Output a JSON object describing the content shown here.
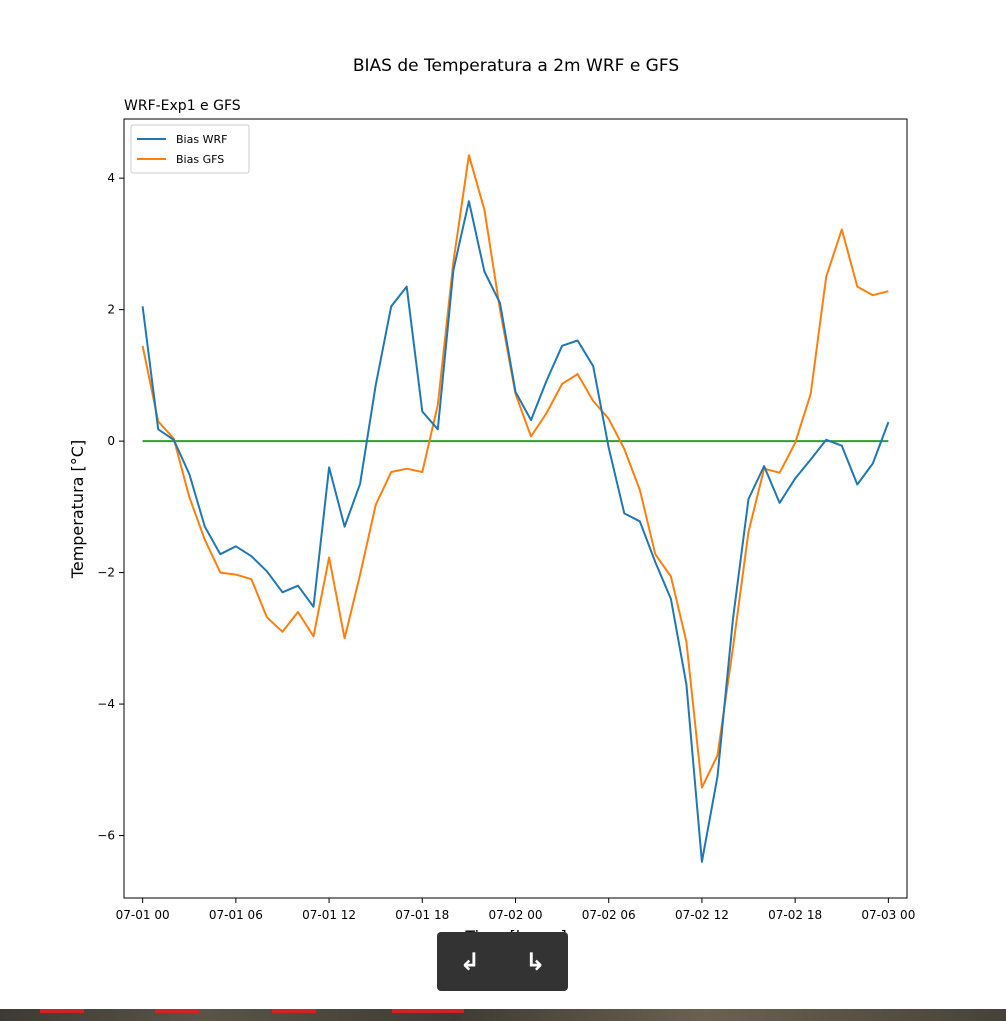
{
  "chart_data": {
    "type": "line",
    "title": "BIAS de Temperatura a 2m WRF e GFS",
    "subtitle": "WRF-Exp1 e GFS",
    "xlabel": "Time [horas]",
    "ylabel": "Temperatura [°C]",
    "x_range_hours": [
      -1.2,
      49.2
    ],
    "ylim": [
      -6.95,
      4.9
    ],
    "x_ticks": [
      {
        "label": "07-01 00",
        "hour": 0
      },
      {
        "label": "07-01 06",
        "hour": 6
      },
      {
        "label": "07-01 12",
        "hour": 12
      },
      {
        "label": "07-01 18",
        "hour": 18
      },
      {
        "label": "07-02 00",
        "hour": 24
      },
      {
        "label": "07-02 06",
        "hour": 30
      },
      {
        "label": "07-02 12",
        "hour": 36
      },
      {
        "label": "07-02 18",
        "hour": 42
      },
      {
        "label": "07-03 00",
        "hour": 48
      }
    ],
    "y_ticks": [
      4,
      2,
      0,
      -2,
      -4,
      -6
    ],
    "legend_position": "top-left",
    "grid": false,
    "series": [
      {
        "name": "Bias WRF",
        "color": "#1f77b4",
        "values": [
          2.05,
          0.18,
          0.02,
          -0.5,
          -1.3,
          -1.72,
          -1.6,
          -1.75,
          -1.98,
          -2.3,
          -2.2,
          -2.52,
          -0.4,
          -1.3,
          -0.65,
          0.85,
          2.05,
          2.35,
          0.45,
          0.18,
          2.6,
          3.65,
          2.58,
          2.1,
          0.75,
          0.32,
          0.92,
          1.45,
          1.53,
          1.14,
          -0.1,
          -1.1,
          -1.22,
          -1.84,
          -2.4,
          -3.7,
          -6.4,
          -5.1,
          -2.7,
          -0.88,
          -0.38,
          -0.94,
          -0.57,
          -0.28,
          0.02,
          -0.07,
          -0.66,
          -0.34,
          0.29
        ]
      },
      {
        "name": "Bias GFS",
        "color": "#ff7f0e",
        "values": [
          1.45,
          0.3,
          0.04,
          -0.85,
          -1.5,
          -2.0,
          -2.03,
          -2.1,
          -2.68,
          -2.9,
          -2.6,
          -2.97,
          -1.77,
          -3.0,
          -2.03,
          -0.97,
          -0.47,
          -0.42,
          -0.47,
          0.55,
          2.73,
          4.35,
          3.52,
          2.0,
          0.72,
          0.07,
          0.43,
          0.87,
          1.02,
          0.61,
          0.34,
          -0.12,
          -0.74,
          -1.72,
          -2.06,
          -3.05,
          -5.27,
          -4.78,
          -3.14,
          -1.38,
          -0.42,
          -0.48,
          -0.03,
          0.72,
          2.5,
          3.22,
          2.35,
          2.22,
          2.28
        ]
      },
      {
        "color": "#2ca02c",
        "values": [
          0,
          0
        ]
      }
    ]
  },
  "toolbar": {
    "back_label": "↲",
    "forward_label": "↳"
  }
}
